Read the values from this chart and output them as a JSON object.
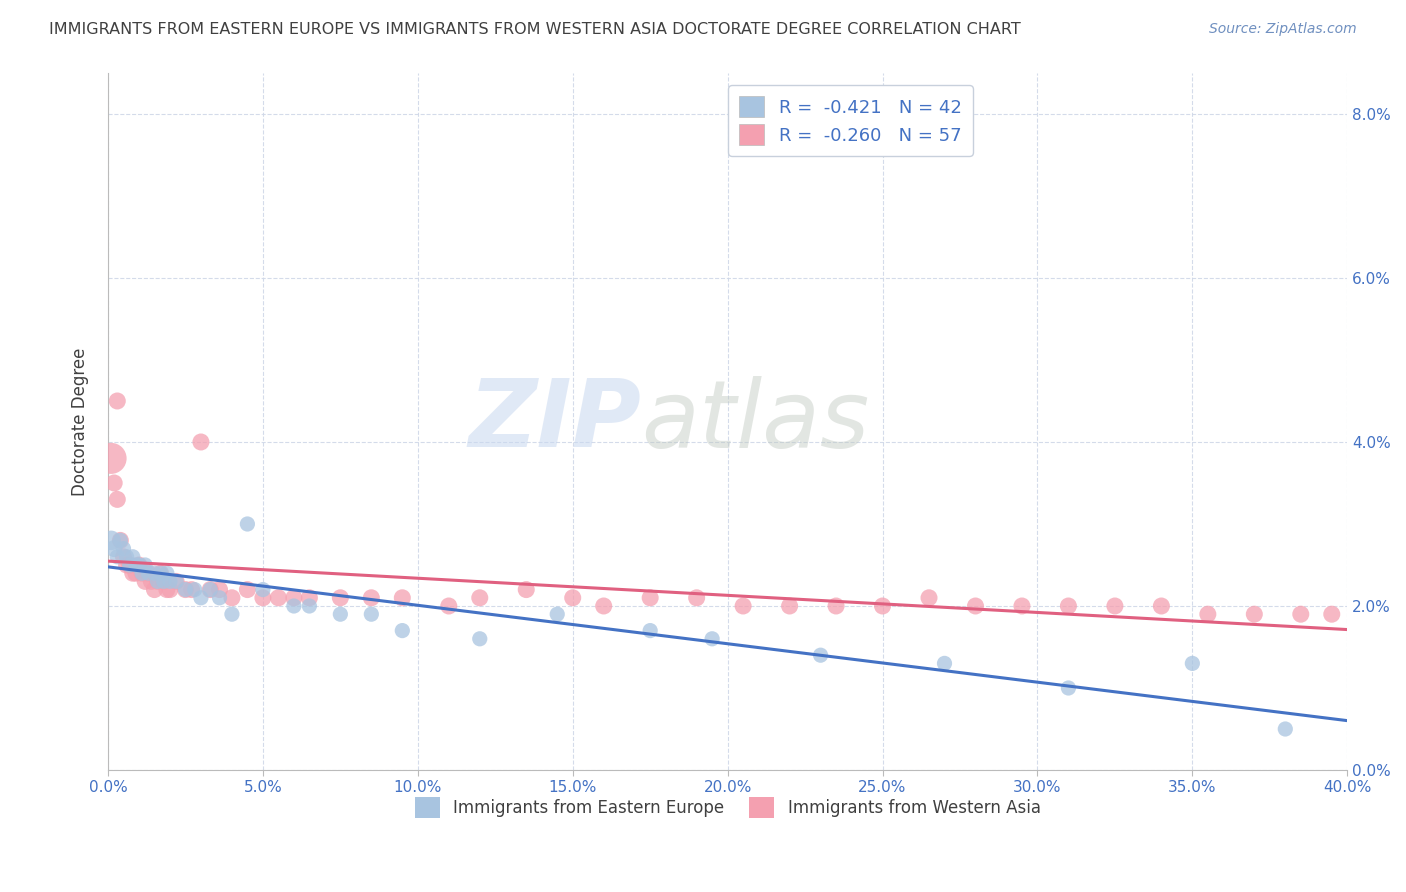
{
  "title": "IMMIGRANTS FROM EASTERN EUROPE VS IMMIGRANTS FROM WESTERN ASIA DOCTORATE DEGREE CORRELATION CHART",
  "source": "Source: ZipAtlas.com",
  "ylabel": "Doctorate Degree",
  "xlim": [
    0.0,
    0.4
  ],
  "ylim": [
    0.0,
    0.085
  ],
  "xticks": [
    0.0,
    0.05,
    0.1,
    0.15,
    0.2,
    0.25,
    0.3,
    0.35,
    0.4
  ],
  "yticks": [
    0.0,
    0.02,
    0.04,
    0.06,
    0.08
  ],
  "legend1_label": "R =  -0.421   N = 42",
  "legend2_label": "R =  -0.260   N = 57",
  "legend1_color": "#a8c4e0",
  "legend2_color": "#f4a0b0",
  "line1_color": "#4472c4",
  "line2_color": "#e06080",
  "watermark_left": "ZIP",
  "watermark_right": "atlas",
  "background_color": "#ffffff",
  "grid_color": "#d0d8e8",
  "title_color": "#404040",
  "tick_color": "#4472c4",
  "series1_x": [
    0.001,
    0.002,
    0.003,
    0.004,
    0.005,
    0.006,
    0.007,
    0.008,
    0.009,
    0.01,
    0.011,
    0.012,
    0.013,
    0.015,
    0.016,
    0.017,
    0.018,
    0.019,
    0.02,
    0.022,
    0.025,
    0.028,
    0.03,
    0.033,
    0.036,
    0.04,
    0.045,
    0.05,
    0.06,
    0.065,
    0.075,
    0.085,
    0.095,
    0.12,
    0.145,
    0.175,
    0.195,
    0.23,
    0.27,
    0.31,
    0.35,
    0.38
  ],
  "series1_y": [
    0.028,
    0.027,
    0.026,
    0.028,
    0.027,
    0.026,
    0.025,
    0.026,
    0.025,
    0.025,
    0.024,
    0.025,
    0.024,
    0.024,
    0.023,
    0.024,
    0.023,
    0.024,
    0.023,
    0.023,
    0.022,
    0.022,
    0.021,
    0.022,
    0.021,
    0.019,
    0.03,
    0.022,
    0.02,
    0.02,
    0.019,
    0.019,
    0.017,
    0.016,
    0.019,
    0.017,
    0.016,
    0.014,
    0.013,
    0.01,
    0.013,
    0.005
  ],
  "series1_sizes": [
    200,
    150,
    120,
    120,
    120,
    120,
    120,
    120,
    120,
    120,
    120,
    120,
    120,
    120,
    120,
    120,
    120,
    120,
    120,
    120,
    120,
    120,
    120,
    120,
    120,
    120,
    120,
    120,
    120,
    120,
    120,
    120,
    120,
    120,
    120,
    120,
    120,
    120,
    120,
    120,
    120,
    120
  ],
  "series2_x": [
    0.001,
    0.002,
    0.003,
    0.003,
    0.004,
    0.005,
    0.006,
    0.007,
    0.008,
    0.009,
    0.01,
    0.011,
    0.012,
    0.013,
    0.014,
    0.015,
    0.016,
    0.017,
    0.018,
    0.019,
    0.02,
    0.022,
    0.025,
    0.027,
    0.03,
    0.033,
    0.036,
    0.04,
    0.045,
    0.05,
    0.055,
    0.06,
    0.065,
    0.075,
    0.085,
    0.095,
    0.11,
    0.12,
    0.135,
    0.15,
    0.16,
    0.175,
    0.19,
    0.205,
    0.22,
    0.235,
    0.25,
    0.265,
    0.28,
    0.295,
    0.31,
    0.325,
    0.34,
    0.355,
    0.37,
    0.385,
    0.395
  ],
  "series2_y": [
    0.038,
    0.035,
    0.033,
    0.045,
    0.028,
    0.026,
    0.025,
    0.025,
    0.024,
    0.024,
    0.025,
    0.024,
    0.023,
    0.024,
    0.023,
    0.022,
    0.023,
    0.024,
    0.023,
    0.022,
    0.022,
    0.023,
    0.022,
    0.022,
    0.04,
    0.022,
    0.022,
    0.021,
    0.022,
    0.021,
    0.021,
    0.021,
    0.021,
    0.021,
    0.021,
    0.021,
    0.02,
    0.021,
    0.022,
    0.021,
    0.02,
    0.021,
    0.021,
    0.02,
    0.02,
    0.02,
    0.02,
    0.021,
    0.02,
    0.02,
    0.02,
    0.02,
    0.02,
    0.019,
    0.019,
    0.019,
    0.019
  ],
  "series2_sizes": [
    500,
    150,
    150,
    150,
    150,
    150,
    150,
    150,
    150,
    150,
    150,
    150,
    150,
    150,
    150,
    150,
    150,
    150,
    150,
    150,
    150,
    150,
    150,
    150,
    150,
    150,
    150,
    150,
    150,
    150,
    150,
    150,
    150,
    150,
    150,
    150,
    150,
    150,
    150,
    150,
    150,
    150,
    150,
    150,
    150,
    150,
    150,
    150,
    150,
    150,
    150,
    150,
    150,
    150,
    150,
    150,
    150
  ]
}
